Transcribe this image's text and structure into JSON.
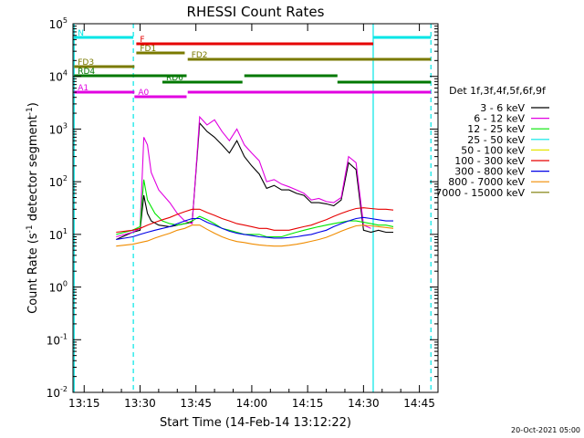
{
  "title": "RHESSI Count Rates",
  "xlabel": "Start Time (14-Feb-14 13:12:22)",
  "ylabel_main": "Count Rate (s",
  "ylabel_sup1": "-1",
  "ylabel_mid": " detector segment",
  "ylabel_sup2": "-1",
  "ylabel_end": ")",
  "timestamp": "20-Oct-2021 05:00",
  "legend_title": "Det 1f,3f,4f,5f,6f,9f",
  "chart_data": {
    "type": "line",
    "title": "RHESSI Count Rates",
    "xlabel": "Start Time (14-Feb-14 13:12:22)",
    "ylabel": "Count Rate (s^-1 detector segment^-1)",
    "y_scale": "log",
    "ylim": [
      0.01,
      100000
    ],
    "xlim_min": [
      792,
      890
    ],
    "x_ticks": [
      "13:15",
      "13:30",
      "13:45",
      "14:00",
      "14:15",
      "14:30",
      "14:45"
    ],
    "x_tick_values": [
      795,
      810,
      825,
      840,
      855,
      870,
      885
    ],
    "y_ticks": [
      {
        "v": 0.01,
        "b": "10",
        "e": "-2"
      },
      {
        "v": 0.1,
        "b": "10",
        "e": "-1"
      },
      {
        "v": 1,
        "b": "10",
        "e": "0"
      },
      {
        "v": 10,
        "b": "10",
        "e": "1"
      },
      {
        "v": 100,
        "b": "10",
        "e": "2"
      },
      {
        "v": 1000,
        "b": "10",
        "e": "3"
      },
      {
        "v": 10000,
        "b": "10",
        "e": "4"
      },
      {
        "v": 100000,
        "b": "10",
        "e": "5"
      }
    ],
    "legend_position": "right",
    "series": [
      {
        "name": "3 - 6 keV",
        "color": "#000000",
        "x": [
          803.6,
          808,
          810,
          811,
          812,
          813,
          815,
          818,
          820,
          822,
          824,
          826,
          828,
          830,
          832,
          834,
          836,
          838,
          840,
          842,
          844,
          846,
          848,
          850,
          852,
          854,
          856,
          858,
          860,
          862,
          864,
          866,
          868,
          870,
          872,
          874,
          876,
          878
        ],
        "y": [
          8,
          11,
          12,
          55,
          25,
          18,
          15,
          14,
          15,
          16,
          17,
          1300,
          900,
          700,
          500,
          350,
          600,
          300,
          200,
          140,
          75,
          85,
          70,
          70,
          60,
          55,
          40,
          40,
          38,
          35,
          45,
          230,
          170,
          12,
          11,
          12,
          11,
          11
        ]
      },
      {
        "name": "6 - 12 keV",
        "color": "#e100e1",
        "x": [
          803.6,
          808,
          810,
          811,
          812,
          813,
          815,
          818,
          820,
          822,
          824,
          826,
          828,
          830,
          832,
          834,
          836,
          838,
          840,
          842,
          844,
          846,
          848,
          850,
          852,
          854,
          856,
          858,
          860,
          862,
          864,
          866,
          868,
          870,
          872
        ],
        "y": [
          9,
          11,
          13,
          700,
          500,
          150,
          70,
          40,
          25,
          18,
          16,
          1700,
          1200,
          1500,
          900,
          600,
          1000,
          500,
          350,
          250,
          100,
          110,
          90,
          80,
          70,
          60,
          45,
          48,
          42,
          40,
          50,
          300,
          230,
          15,
          13
        ]
      },
      {
        "name": "12 - 25 keV",
        "color": "#00e600",
        "x": [
          803.6,
          808,
          810,
          811,
          812,
          814,
          816,
          818,
          820,
          822,
          824,
          826,
          828,
          830,
          832,
          834,
          836,
          838,
          840,
          842,
          844,
          846,
          848,
          850,
          852,
          854,
          856,
          858,
          860,
          862,
          864,
          866,
          868,
          870,
          872,
          874,
          876,
          878
        ],
        "y": [
          10,
          12,
          14,
          110,
          45,
          25,
          18,
          16,
          15,
          16,
          18,
          22,
          19,
          16,
          13,
          12,
          11,
          10,
          10,
          10,
          9,
          9,
          9,
          10,
          11,
          12,
          13,
          14,
          15,
          16,
          17,
          18,
          18,
          17,
          16,
          15,
          15,
          14
        ]
      },
      {
        "name": "25 - 50 keV",
        "color": "#00e6e6",
        "x": [],
        "y": []
      },
      {
        "name": "50 - 100 keV",
        "color": "#e6e600",
        "x": [],
        "y": []
      },
      {
        "name": "100 - 300 keV",
        "color": "#e60000",
        "x": [
          803.6,
          808,
          810,
          812,
          814,
          816,
          818,
          820,
          822,
          824,
          826,
          828,
          830,
          832,
          834,
          836,
          838,
          840,
          842,
          844,
          846,
          848,
          850,
          852,
          854,
          856,
          858,
          860,
          862,
          864,
          866,
          868,
          870,
          872,
          874,
          876,
          878
        ],
        "y": [
          11,
          12,
          13,
          15,
          17,
          19,
          21,
          24,
          27,
          30,
          30,
          26,
          23,
          20,
          18,
          16,
          15,
          14,
          13,
          13,
          12,
          12,
          12,
          13,
          14,
          15,
          17,
          19,
          22,
          25,
          28,
          31,
          32,
          31,
          30,
          30,
          29
        ]
      },
      {
        "name": "300 - 800 keV",
        "color": "#0000e6",
        "x": [
          803.6,
          808,
          810,
          812,
          814,
          816,
          818,
          820,
          822,
          824,
          826,
          828,
          830,
          832,
          834,
          836,
          838,
          840,
          842,
          844,
          846,
          848,
          850,
          852,
          854,
          856,
          858,
          860,
          862,
          864,
          866,
          868,
          870,
          872,
          874,
          876,
          878
        ],
        "y": [
          8,
          9,
          10,
          11,
          12,
          13,
          14,
          16,
          18,
          20,
          20,
          17,
          15,
          13,
          11.5,
          10.5,
          10,
          9.5,
          9,
          8.8,
          8.5,
          8.5,
          8.7,
          9,
          9.5,
          10,
          11,
          12,
          14,
          16,
          18,
          20,
          21,
          20,
          19,
          18,
          18
        ]
      },
      {
        "name": "800 - 7000 keV",
        "color": "#f08c00",
        "x": [
          803.6,
          808,
          810,
          812,
          814,
          816,
          818,
          820,
          822,
          824,
          826,
          828,
          830,
          832,
          834,
          836,
          838,
          840,
          842,
          844,
          846,
          848,
          850,
          852,
          854,
          856,
          858,
          860,
          862,
          864,
          866,
          868,
          870,
          872,
          874,
          876,
          878
        ],
        "y": [
          6,
          6.5,
          7,
          7.5,
          8.5,
          9.5,
          10.5,
          12,
          13,
          15,
          15,
          12.5,
          10.5,
          9,
          8,
          7.3,
          7,
          6.6,
          6.3,
          6.1,
          6,
          6,
          6.2,
          6.5,
          6.9,
          7.4,
          8,
          8.8,
          10,
          11.5,
          13,
          14.5,
          15,
          14.5,
          14,
          13.5,
          13
        ]
      },
      {
        "name": "7000 - 15000 keV",
        "color": "#7a7a00",
        "x": [],
        "y": []
      }
    ],
    "time_markers": [
      {
        "x": 792.3,
        "style": "solid"
      },
      {
        "x": 808.2,
        "style": "dashed"
      },
      {
        "x": 872.6,
        "style": "solid"
      },
      {
        "x": 888.1,
        "style": "dashed"
      }
    ],
    "flag_bars": [
      {
        "label": "N",
        "color": "#00e6e6",
        "segments": [
          [
            792.3,
            808.2
          ],
          [
            872.6,
            888.1
          ]
        ]
      },
      {
        "label": "F",
        "color": "#e60000",
        "segments": [
          [
            809,
            872.6
          ]
        ]
      },
      {
        "label": "FD1",
        "color": "#7a7a00",
        "segments": [
          [
            809,
            822
          ]
        ]
      },
      {
        "label": "FD2",
        "color": "#7a7a00",
        "segments": [
          [
            822.8,
            888.1
          ]
        ]
      },
      {
        "label": "FD3",
        "color": "#7a7a00",
        "segments": [
          [
            792.3,
            808.5
          ]
        ]
      },
      {
        "label": "RD4",
        "color": "#007800",
        "segments": [
          [
            792.3,
            822.5
          ],
          [
            838,
            863
          ]
        ]
      },
      {
        "label": "RD6",
        "color": "#007800",
        "segments": [
          [
            816,
            837.5
          ],
          [
            863,
            888.1
          ]
        ]
      },
      {
        "label": "A1",
        "color": "#e100e1",
        "segments": [
          [
            792.3,
            808.5
          ],
          [
            822.8,
            888.1
          ]
        ]
      },
      {
        "label": "A0",
        "color": "#e100e1",
        "segments": [
          [
            808.5,
            822.5
          ]
        ]
      }
    ]
  }
}
